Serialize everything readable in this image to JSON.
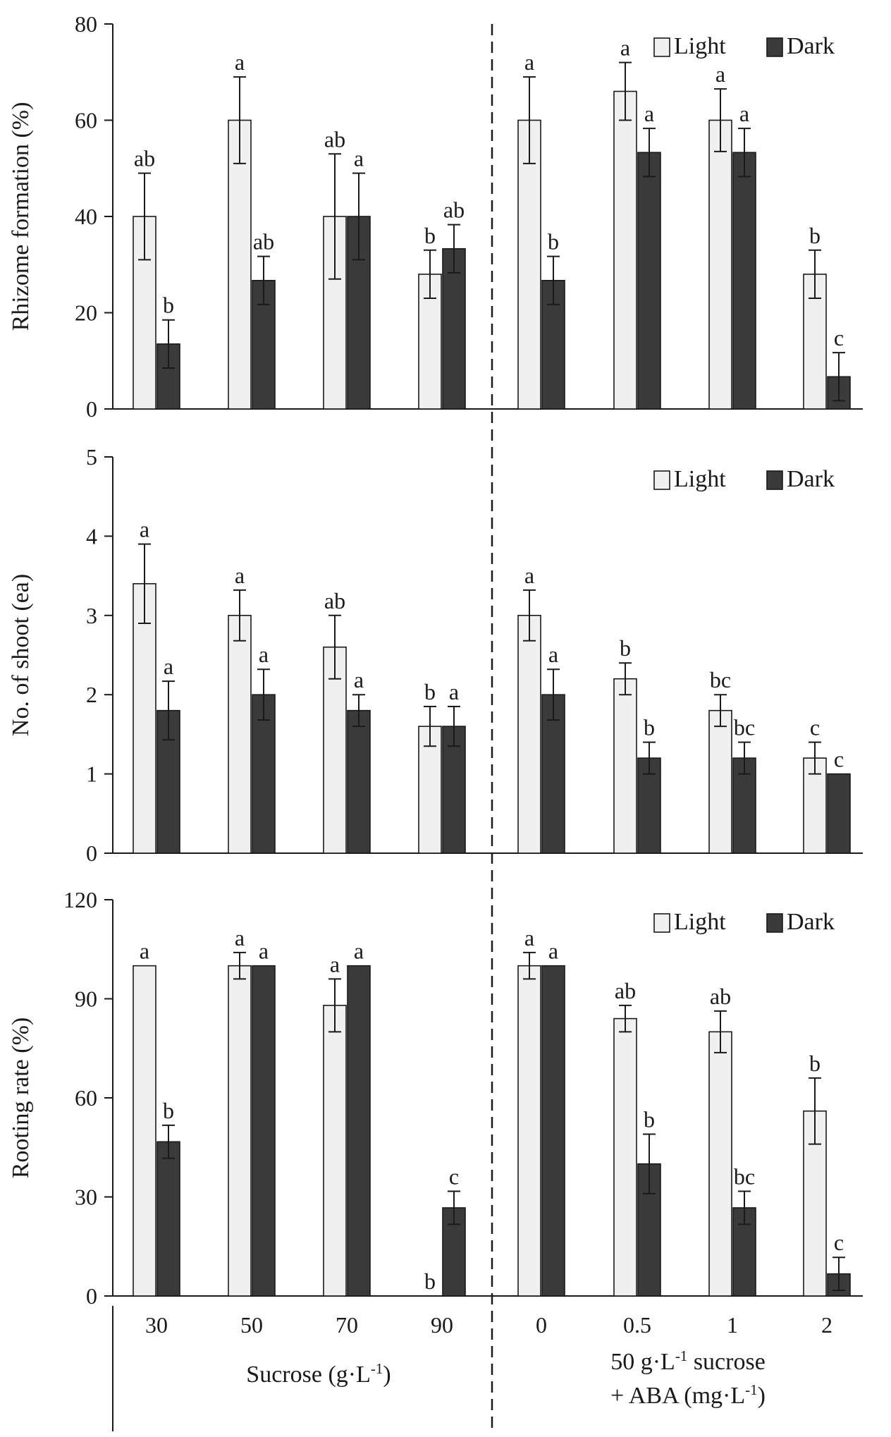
{
  "chart_data": [
    {
      "type": "bar",
      "ylabel": "Rhizome formation (%)",
      "ylim": [
        0,
        80
      ],
      "yticks": [
        0,
        20,
        40,
        60,
        80
      ],
      "categories": [
        "30",
        "50",
        "70",
        "90",
        "0",
        "0.5",
        "1",
        "2"
      ],
      "series": [
        {
          "name": "Light",
          "values": [
            40,
            60,
            40,
            28,
            60,
            66,
            60,
            28
          ],
          "errors": [
            9,
            9,
            13,
            5,
            9,
            6,
            6.5,
            5
          ],
          "letters": [
            "ab",
            "a",
            "ab",
            "b",
            "a",
            "a",
            "a",
            "b"
          ]
        },
        {
          "name": "Dark",
          "values": [
            13.5,
            26.7,
            40,
            33.3,
            26.7,
            53.3,
            53.3,
            6.7
          ],
          "errors": [
            5,
            5,
            9,
            5,
            5,
            5,
            5,
            5
          ],
          "letters": [
            "b",
            "ab",
            "a",
            "ab",
            "b",
            "a",
            "a",
            "c"
          ]
        }
      ],
      "legend": {
        "position": "top-right",
        "entries": [
          "Light",
          "Dark"
        ]
      }
    },
    {
      "type": "bar",
      "ylabel": "No. of shoot (ea)",
      "ylim": [
        0,
        5
      ],
      "yticks": [
        0,
        1,
        2,
        3,
        4,
        5
      ],
      "categories": [
        "30",
        "50",
        "70",
        "90",
        "0",
        "0.5",
        "1",
        "2"
      ],
      "series": [
        {
          "name": "Light",
          "values": [
            3.4,
            3.0,
            2.6,
            1.6,
            3.0,
            2.2,
            1.8,
            1.2
          ],
          "errors": [
            0.5,
            0.32,
            0.4,
            0.25,
            0.32,
            0.2,
            0.2,
            0.2
          ],
          "letters": [
            "a",
            "a",
            "ab",
            "b",
            "a",
            "b",
            "bc",
            "c"
          ]
        },
        {
          "name": "Dark",
          "values": [
            1.8,
            2.0,
            1.8,
            1.6,
            2.0,
            1.2,
            1.2,
            1.0
          ],
          "errors": [
            0.37,
            0.32,
            0.2,
            0.25,
            0.32,
            0.2,
            0.2,
            0
          ],
          "letters": [
            "a",
            "a",
            "a",
            "a",
            "a",
            "b",
            "bc",
            "c"
          ]
        }
      ],
      "legend": {
        "position": "top-right",
        "entries": [
          "Light",
          "Dark"
        ]
      }
    },
    {
      "type": "bar",
      "ylabel": "Rooting rate (%)",
      "ylim": [
        0,
        120
      ],
      "yticks": [
        0,
        30,
        60,
        90,
        120
      ],
      "categories": [
        "30",
        "50",
        "70",
        "90",
        "0",
        "0.5",
        "1",
        "2"
      ],
      "series": [
        {
          "name": "Light",
          "values": [
            100,
            100,
            88,
            0,
            100,
            84,
            80,
            56
          ],
          "errors": [
            0,
            4,
            8,
            0,
            4,
            4,
            6.3,
            10
          ],
          "letters": [
            "a",
            "a",
            "a",
            "b",
            "a",
            "ab",
            "ab",
            "b"
          ]
        },
        {
          "name": "Dark",
          "values": [
            46.7,
            100,
            100,
            26.7,
            100,
            40,
            26.7,
            6.7
          ],
          "errors": [
            5,
            0,
            0,
            5,
            0,
            9,
            5,
            5
          ],
          "letters": [
            "b",
            "a",
            "a",
            "c",
            "a",
            "b",
            "bc",
            "c"
          ]
        }
      ],
      "legend": {
        "position": "top-right",
        "entries": [
          "Light",
          "Dark"
        ]
      }
    }
  ],
  "x_axis": {
    "group_left": {
      "label": "Sucrose (g·L",
      "sup": "-1",
      "tail": ")"
    },
    "group_right": {
      "line1": {
        "label": "50 g·L",
        "sup": "-1",
        "tail": " sucrose"
      },
      "line2": {
        "label": "+ ABA (mg·L",
        "sup": "-1",
        "tail": ")"
      }
    }
  },
  "colors": {
    "light_bar": "#f0f0f0",
    "dark_bar": "#3a3a3a",
    "ink": "#1a1a1a"
  }
}
